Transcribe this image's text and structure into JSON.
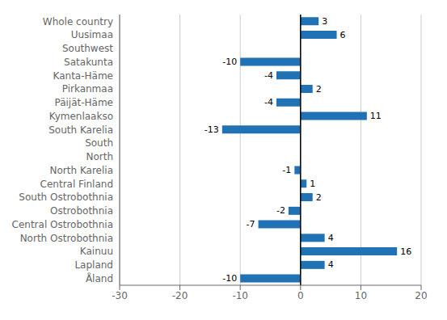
{
  "chart_data": {
    "type": "bar",
    "orientation": "horizontal",
    "categories": [
      "Whole country",
      "Uusimaa",
      "Southwest",
      "Satakunta",
      "Kanta-Häme",
      "Pirkanmaa",
      "Päijät-Häme",
      "Kymenlaakso",
      "South Karelia",
      "South",
      "North",
      "North Karelia",
      "Central Finland",
      "South Ostrobothnia",
      "Ostrobothnia",
      "Central Ostrobothnia",
      "North Ostrobothnia",
      "Kainuu",
      "Lapland",
      "Åland"
    ],
    "values": [
      3,
      6,
      0,
      -10,
      -4,
      2,
      -4,
      11,
      -13,
      0,
      0,
      -1,
      1,
      2,
      -2,
      -7,
      4,
      16,
      4,
      -10
    ],
    "color": "#2171b5",
    "xlim": [
      -30,
      20
    ],
    "xticks": [
      -30,
      -20,
      -10,
      0,
      10,
      20
    ],
    "grid": true,
    "data_labels": true
  }
}
